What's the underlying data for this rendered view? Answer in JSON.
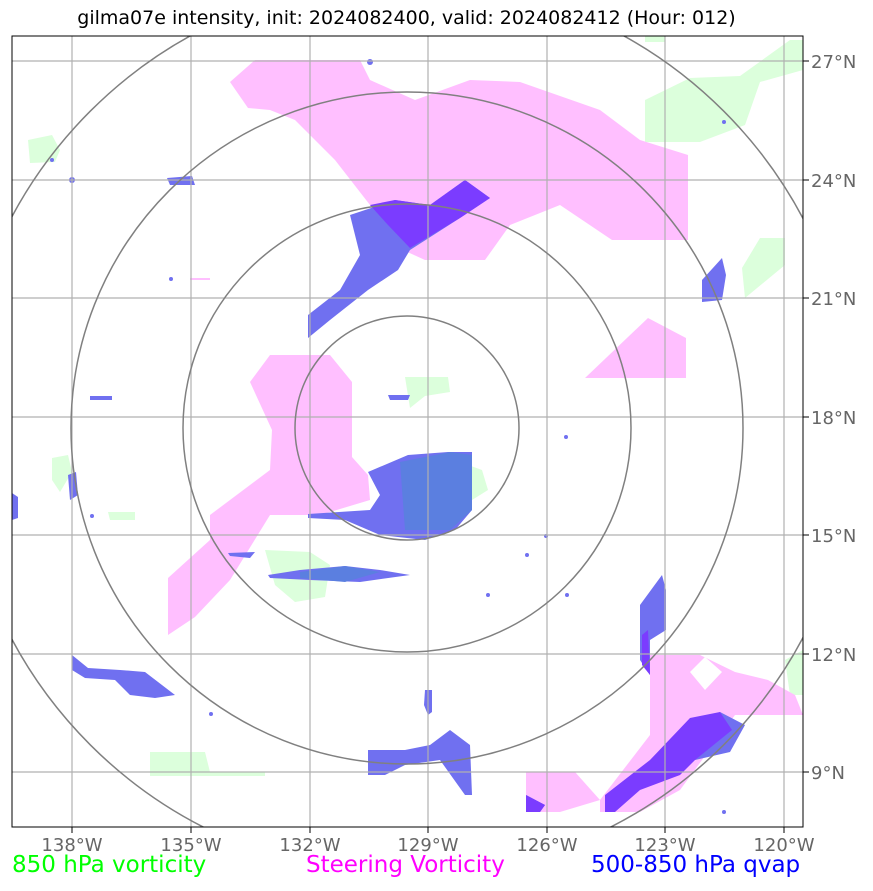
{
  "title": "gilma07e intensity, init: 2024082400, valid: 2024082412 (Hour: 012)",
  "lon_labels": [
    "138°W",
    "135°W",
    "132°W",
    "129°W",
    "126°W",
    "123°W",
    "120°W"
  ],
  "lat_labels": [
    "27°N",
    "24°N",
    "21°N",
    "18°N",
    "15°N",
    "12°N",
    "9°N"
  ],
  "legend": [
    {
      "label": "850 hPa vorticity",
      "color": "#00ff00"
    },
    {
      "label": "Steering Vorticity",
      "color": "#ff00ff"
    },
    {
      "label": "500-850 hPa qvap",
      "color": "#0000ff"
    }
  ],
  "colors": {
    "vorticity_850": "#dcffdc",
    "steering_vorticity": "#ffbfff",
    "qvap": "#7070f0",
    "overlap": "#7b3cff",
    "range_rings": "#808080",
    "grid": "#b0b0b0"
  }
}
